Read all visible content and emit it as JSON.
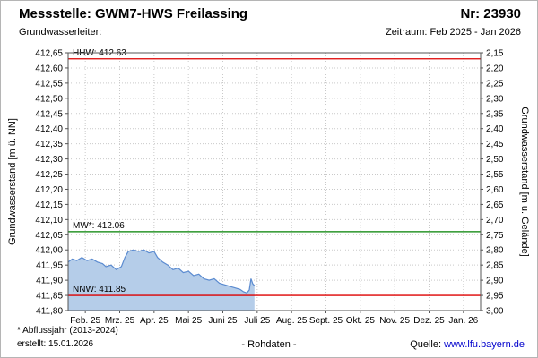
{
  "header": {
    "title": "Messstelle: GWM7-HWS Freilassing",
    "number_label": "Nr: 23930",
    "aquifer_label": "Grundwasserleiter:",
    "period_label": "Zeitraum: Feb 2025 - Jan 2026"
  },
  "footer": {
    "note": "* Abflussjahr (2013-2024)",
    "created": "erstellt: 15.01.2026",
    "center": "- Rohdaten -",
    "source_label": "Quelle:",
    "source_link": "www.lfu.bayern.de"
  },
  "colors": {
    "area_fill": "#b5cde9",
    "area_line": "#5b8bd0",
    "extreme_line": "#dd0000",
    "mean_line": "#008000",
    "grid": "#c9c9c9",
    "link": "#0000cc"
  },
  "chart_data": {
    "type": "area",
    "title": "",
    "ylabel_left": "Grundwasserstand [m ü. NN]",
    "ylabel_right": "Grundwasserstand [m u. Gelände]",
    "y_left_min": 411.8,
    "y_left_max": 412.65,
    "y_tick_step": 0.05,
    "y_right_top": 2.15,
    "y_right_bottom": 3.0,
    "grid": true,
    "x_categories": [
      "Feb. 25",
      "Mrz. 25",
      "Apr. 25",
      "Mai 25",
      "Juni 25",
      "Juli 25",
      "Aug. 25",
      "Sept. 25",
      "Okt. 25",
      "Nov. 25",
      "Dez. 25",
      "Jan. 26"
    ],
    "reference_lines": [
      {
        "name": "HHW",
        "label": "HHW: 412.63",
        "value": 412.63,
        "color": "#dd0000"
      },
      {
        "name": "MW",
        "label": "MW*: 412.06",
        "value": 412.06,
        "color": "#008000"
      },
      {
        "name": "NNW",
        "label": "NNW: 411.85",
        "value": 411.85,
        "color": "#dd0000"
      }
    ],
    "series": [
      {
        "name": "Grundwasserstand (Rohdaten)",
        "color_line": "#5b8bd0",
        "color_fill": "#b5cde9",
        "x_unit": "months_since_feb_2025",
        "points": [
          [
            0.0,
            411.96
          ],
          [
            0.12,
            411.97
          ],
          [
            0.25,
            411.965
          ],
          [
            0.4,
            411.975
          ],
          [
            0.55,
            411.965
          ],
          [
            0.7,
            411.97
          ],
          [
            0.85,
            411.96
          ],
          [
            1.0,
            411.955
          ],
          [
            1.1,
            411.945
          ],
          [
            1.25,
            411.95
          ],
          [
            1.4,
            411.935
          ],
          [
            1.55,
            411.945
          ],
          [
            1.65,
            411.975
          ],
          [
            1.75,
            411.995
          ],
          [
            1.9,
            412.0
          ],
          [
            2.05,
            411.995
          ],
          [
            2.2,
            412.0
          ],
          [
            2.35,
            411.99
          ],
          [
            2.5,
            411.995
          ],
          [
            2.6,
            411.975
          ],
          [
            2.75,
            411.96
          ],
          [
            2.9,
            411.95
          ],
          [
            3.05,
            411.935
          ],
          [
            3.2,
            411.94
          ],
          [
            3.35,
            411.925
          ],
          [
            3.5,
            411.93
          ],
          [
            3.65,
            411.915
          ],
          [
            3.8,
            411.92
          ],
          [
            3.95,
            411.905
          ],
          [
            4.1,
            411.9
          ],
          [
            4.25,
            411.905
          ],
          [
            4.4,
            411.89
          ],
          [
            4.55,
            411.885
          ],
          [
            4.7,
            411.88
          ],
          [
            4.85,
            411.875
          ],
          [
            5.0,
            411.87
          ],
          [
            5.1,
            411.862
          ],
          [
            5.2,
            411.858
          ],
          [
            5.27,
            411.868
          ],
          [
            5.32,
            411.905
          ],
          [
            5.37,
            411.888
          ],
          [
            5.42,
            411.882
          ]
        ]
      }
    ]
  }
}
